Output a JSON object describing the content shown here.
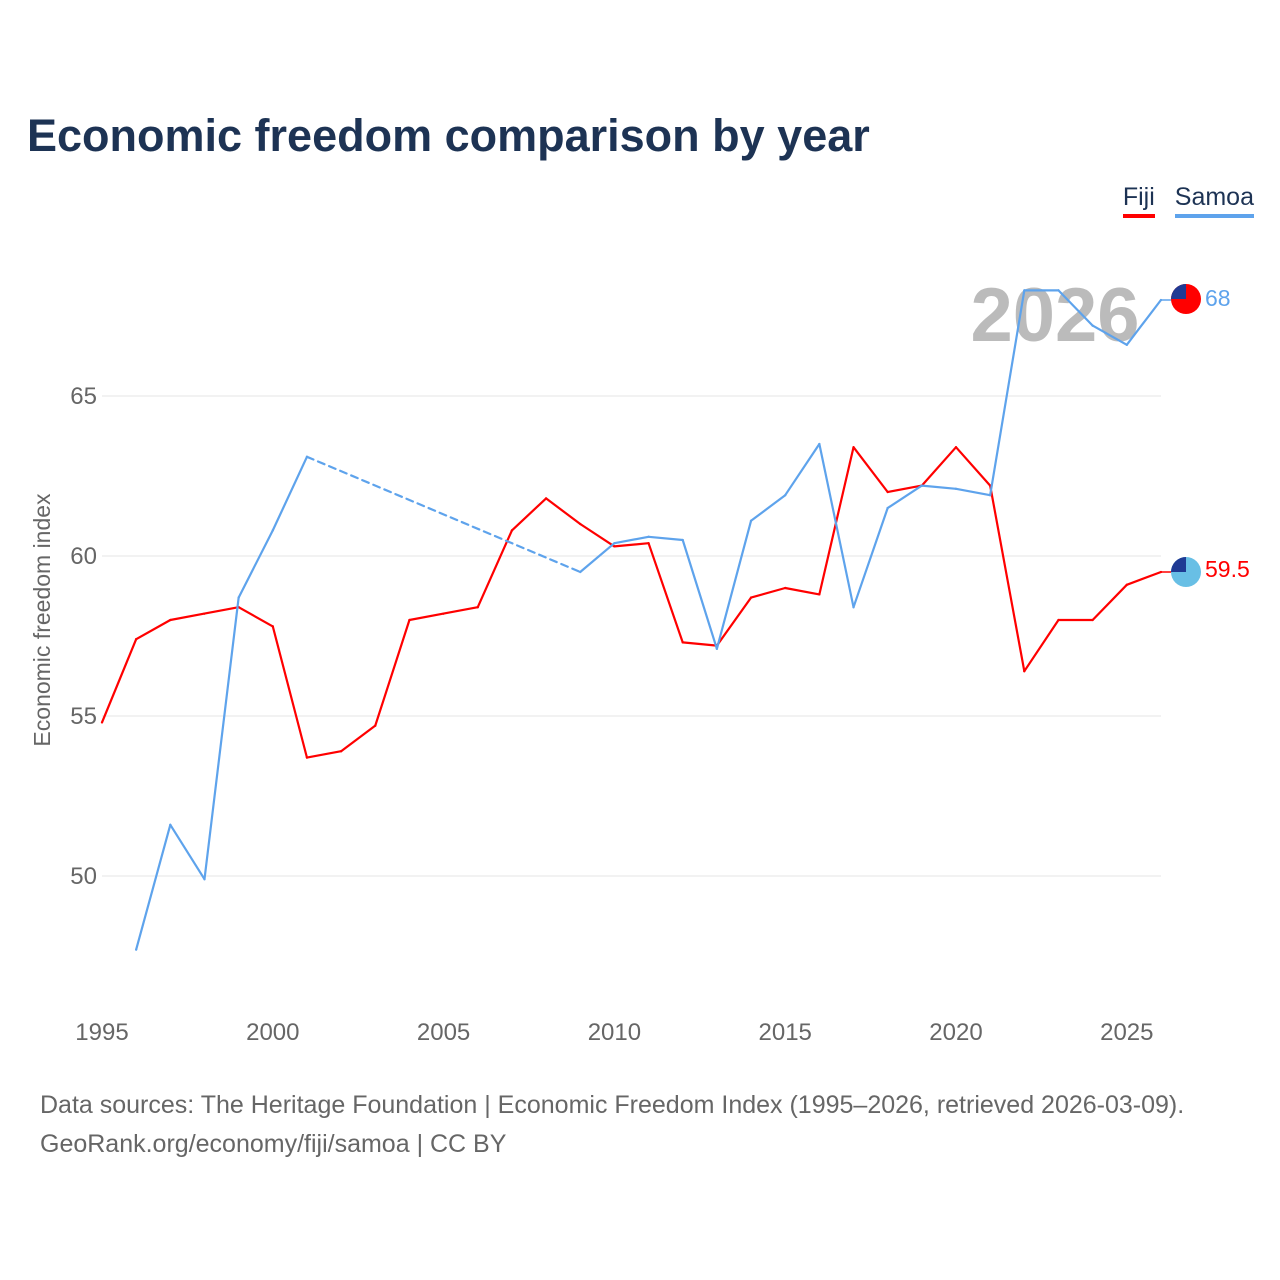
{
  "title": "Economic freedom comparison by year",
  "legend": [
    {
      "name": "Fiji",
      "color": "#ff0000"
    },
    {
      "name": "Samoa",
      "color": "#5ea3ec"
    }
  ],
  "year_watermark": "2026",
  "end_labels": {
    "samoa": "68",
    "fiji": "59.5"
  },
  "footer": {
    "line1": "Data sources: The Heritage Foundation | Economic Freedom Index (1995–2026, retrieved 2026-03-09).",
    "line2": "GeoRank.org/economy/fiji/samoa | CC BY"
  },
  "chart_data": {
    "type": "line",
    "title": "Economic freedom comparison by year",
    "xlabel": "",
    "ylabel": "Economic freedom index",
    "xlim": [
      1995,
      2026
    ],
    "ylim": [
      46,
      70
    ],
    "x_ticks": [
      "1995",
      "2000",
      "2005",
      "2010",
      "2015",
      "2020",
      "2025"
    ],
    "y_ticks": [
      "50",
      "55",
      "60",
      "65"
    ],
    "grid": true,
    "legend_position": "top-right",
    "series": [
      {
        "name": "Fiji",
        "color": "#ff0000",
        "x": [
          1995,
          1996,
          1997,
          1998,
          1999,
          2000,
          2001,
          2002,
          2003,
          2004,
          2005,
          2006,
          2007,
          2008,
          2009,
          2010,
          2011,
          2012,
          2013,
          2014,
          2015,
          2016,
          2017,
          2018,
          2019,
          2020,
          2021,
          2022,
          2023,
          2024,
          2025,
          2026
        ],
        "values": [
          54.8,
          57.4,
          58.0,
          58.2,
          58.4,
          57.8,
          53.7,
          53.9,
          54.7,
          58.0,
          58.2,
          58.4,
          60.8,
          61.8,
          61.0,
          60.3,
          60.4,
          57.3,
          57.2,
          58.7,
          59.0,
          58.8,
          63.4,
          62.0,
          62.2,
          63.4,
          62.2,
          56.4,
          58.0,
          58.0,
          59.1,
          59.5
        ]
      },
      {
        "name": "Samoa",
        "color": "#5ea3ec",
        "x": [
          1996,
          1997,
          1998,
          1999,
          2000,
          2001,
          2009,
          2010,
          2011,
          2012,
          2013,
          2014,
          2015,
          2016,
          2017,
          2018,
          2019,
          2020,
          2021,
          2022,
          2023,
          2024,
          2025,
          2026
        ],
        "values": [
          47.7,
          51.6,
          49.9,
          58.7,
          60.8,
          63.1,
          59.5,
          60.4,
          60.6,
          60.5,
          57.1,
          61.1,
          61.9,
          63.5,
          58.4,
          61.5,
          62.2,
          62.1,
          61.9,
          68.3,
          68.3,
          67.2,
          66.6,
          68.0
        ],
        "gap": [
          2001,
          2009
        ]
      }
    ]
  }
}
